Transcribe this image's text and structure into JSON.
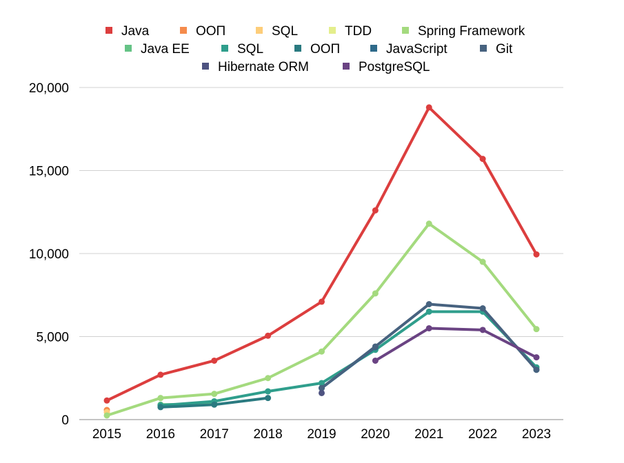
{
  "chart_data": {
    "type": "line",
    "title": "",
    "xlabel": "",
    "ylabel": "",
    "x": [
      "2015",
      "2016",
      "2017",
      "2018",
      "2019",
      "2020",
      "2021",
      "2022",
      "2023"
    ],
    "y_ticks": [
      "0",
      "5,000",
      "10,000",
      "15,000",
      "20,000"
    ],
    "y_tick_values": [
      0,
      5000,
      10000,
      15000,
      20000
    ],
    "ylim": [
      0,
      20000
    ],
    "grid": "horizontal",
    "legend": "top-center",
    "series": [
      {
        "name": "Java",
        "color": "#dc3e3e",
        "values": [
          1150,
          2700,
          3550,
          5050,
          7100,
          12600,
          18800,
          15700,
          9950
        ]
      },
      {
        "name": "ООП",
        "color": "#f58b4c",
        "values": [
          580,
          null,
          null,
          null,
          null,
          null,
          null,
          null,
          null
        ]
      },
      {
        "name": "SQL",
        "color": "#fdcd79",
        "values": [
          450,
          null,
          null,
          null,
          null,
          null,
          null,
          null,
          null
        ]
      },
      {
        "name": "TDD",
        "color": "#e4ee8c",
        "values": [
          null,
          null,
          null,
          null,
          null,
          null,
          null,
          null,
          null
        ]
      },
      {
        "name": "Spring Framework",
        "color": "#a4da7e",
        "values": [
          250,
          1300,
          1550,
          2500,
          4100,
          7600,
          11800,
          9500,
          5450
        ]
      },
      {
        "name": "Java EE",
        "color": "#65c386",
        "values": [
          null,
          900,
          950,
          null,
          null,
          null,
          null,
          null,
          null
        ]
      },
      {
        "name": "SQL",
        "color": "#2f9e8c",
        "values": [
          null,
          850,
          1100,
          1700,
          2200,
          4200,
          6500,
          6500,
          3150
        ]
      },
      {
        "name": "ООП",
        "color": "#2a7a80",
        "values": [
          null,
          750,
          900,
          1300,
          null,
          null,
          null,
          null,
          3000
        ]
      },
      {
        "name": "JavaScript",
        "color": "#2e6a8a",
        "values": [
          null,
          null,
          null,
          null,
          1900,
          4350,
          null,
          null,
          null
        ]
      },
      {
        "name": "Git",
        "color": "#47627f",
        "values": [
          null,
          null,
          null,
          null,
          1900,
          4400,
          6950,
          6700,
          3000
        ]
      },
      {
        "name": "Hibernate ORM",
        "color": "#4e5381",
        "values": [
          null,
          null,
          null,
          null,
          1600,
          null,
          null,
          null,
          null
        ]
      },
      {
        "name": "PostgreSQL",
        "color": "#6a4383",
        "values": [
          null,
          null,
          null,
          null,
          null,
          3550,
          5500,
          5400,
          3750
        ]
      }
    ]
  }
}
